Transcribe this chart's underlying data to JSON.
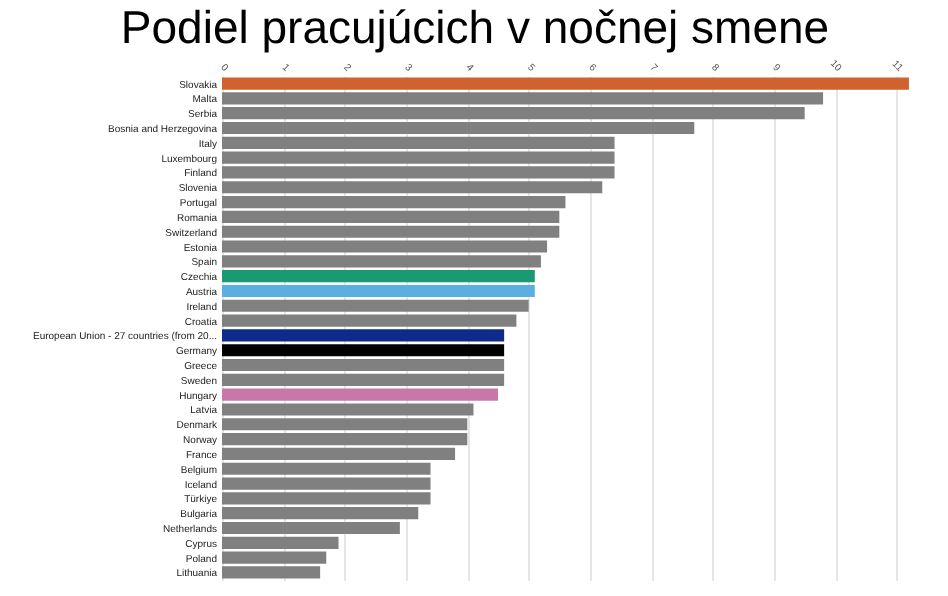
{
  "chart_data": {
    "type": "bar",
    "orientation": "horizontal",
    "title": "Podiel pracujúcich v nočnej smene",
    "categories": [
      "Slovakia",
      "Malta",
      "Serbia",
      "Bosnia and Herzegovina",
      "Italy",
      "Luxembourg",
      "Finland",
      "Slovenia",
      "Portugal",
      "Romania",
      "Switzerland",
      "Estonia",
      "Spain",
      "Czechia",
      "Austria",
      "Ireland",
      "Croatia",
      "European Union - 27 countries (from 20...",
      "Germany",
      "Greece",
      "Sweden",
      "Hungary",
      "Latvia",
      "Denmark",
      "Norway",
      "France",
      "Belgium",
      "Iceland",
      "Türkiye",
      "Bulgaria",
      "Netherlands",
      "Cyprus",
      "Poland",
      "Lithuania"
    ],
    "values": [
      11.2,
      9.8,
      9.5,
      7.7,
      6.4,
      6.4,
      6.4,
      6.2,
      5.6,
      5.5,
      5.5,
      5.3,
      5.2,
      5.1,
      5.1,
      5.0,
      4.8,
      4.6,
      4.6,
      4.6,
      4.6,
      4.5,
      4.1,
      4.0,
      4.0,
      3.8,
      3.4,
      3.4,
      3.4,
      3.2,
      2.9,
      1.9,
      1.7,
      1.6
    ],
    "colors": [
      "#d0622e",
      "#808080",
      "#808080",
      "#808080",
      "#808080",
      "#808080",
      "#808080",
      "#808080",
      "#808080",
      "#808080",
      "#808080",
      "#808080",
      "#808080",
      "#1a9a73",
      "#5aaee0",
      "#808080",
      "#808080",
      "#0d2a8c",
      "#000000",
      "#808080",
      "#808080",
      "#c878a8",
      "#808080",
      "#808080",
      "#808080",
      "#808080",
      "#808080",
      "#808080",
      "#808080",
      "#808080",
      "#808080",
      "#808080",
      "#808080",
      "#808080"
    ],
    "xlim": [
      0,
      11.25
    ],
    "xticks": [
      0,
      1,
      2,
      3,
      4,
      5,
      6,
      7,
      8,
      9,
      10,
      11
    ],
    "grid": "x"
  }
}
